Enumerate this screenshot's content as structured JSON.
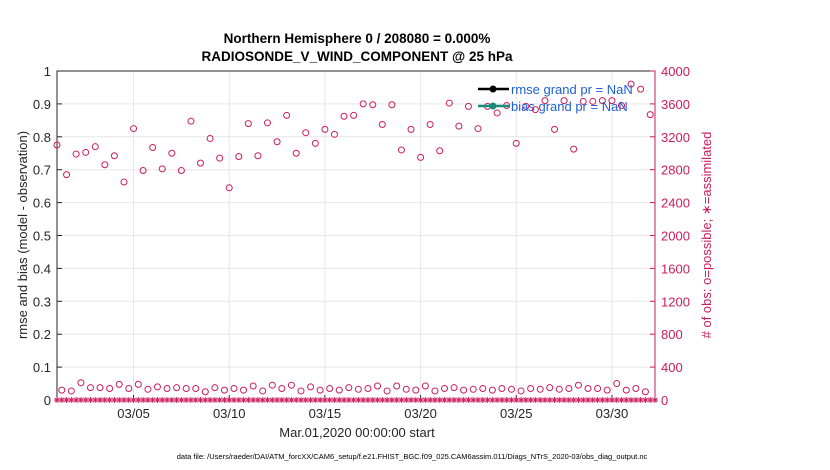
{
  "chart_data": {
    "type": "scatter",
    "title": "Northern Hemisphere 0 / 208080 = 0.000%",
    "subtitle": "RADIOSONDE_V_WIND_COMPONENT @ 25 hPa",
    "xlabel": "Mar.01,2020 00:00:00 start",
    "ylabel_left": "rmse and bias (model - observation)",
    "ylabel_right": "# of obs: o=possible; ∗=assimilated",
    "x_ticks": [
      "03/05",
      "03/10",
      "03/15",
      "03/20",
      "03/25",
      "03/30"
    ],
    "x_tick_days": [
      5,
      10,
      15,
      20,
      25,
      30
    ],
    "xlim_days": [
      1,
      32.25
    ],
    "ylim_left": [
      0,
      1
    ],
    "y_ticks_left": [
      "0",
      "0.1",
      "0.2",
      "0.3",
      "0.4",
      "0.5",
      "0.6",
      "0.7",
      "0.8",
      "0.9",
      "1"
    ],
    "ylim_right": [
      0,
      4000
    ],
    "y_ticks_right": [
      "0",
      "400",
      "800",
      "1200",
      "1600",
      "2000",
      "2400",
      "2800",
      "3200",
      "3600",
      "4000"
    ],
    "grid": true,
    "legend": [
      {
        "label": "rmse grand pr = NaN",
        "color": "#000000"
      },
      {
        "label": "bias grand pr = NaN",
        "color": "#1a8a7a"
      }
    ],
    "colors": {
      "obs": "#cc1c5c",
      "grid": "#e6e6e6",
      "legend_text": "#1f5fd6"
    },
    "series": [
      {
        "name": "possible obs (00Z)",
        "x_days": [
          1,
          1.5,
          2,
          2.5,
          3,
          3.5,
          4,
          4.5,
          5,
          5.5,
          6,
          6.5,
          7,
          7.5,
          8,
          8.5,
          9,
          9.5,
          10,
          10.5,
          11,
          11.5,
          12,
          12.5,
          13,
          13.5,
          14,
          14.5,
          15,
          15.5,
          16,
          16.5,
          17,
          17.5,
          18,
          18.5,
          19,
          19.5,
          20,
          20.5,
          21,
          21.5,
          22,
          22.5,
          23,
          23.5,
          24,
          24.5,
          25,
          25.5,
          26,
          26.5,
          27,
          27.5,
          28,
          28.5,
          29,
          29.5,
          30,
          30.5,
          31,
          31.5,
          32
        ],
        "values": [
          3100,
          2740,
          2990,
          3010,
          3080,
          2860,
          2970,
          2650,
          3300,
          2790,
          3070,
          2810,
          3000,
          2790,
          3390,
          2880,
          3180,
          2940,
          2580,
          2960,
          3360,
          2970,
          3370,
          3140,
          3460,
          3000,
          3250,
          3120,
          3290,
          3230,
          3450,
          3460,
          3600,
          3590,
          3350,
          3590,
          3040,
          3290,
          2950,
          3350,
          3030,
          3610,
          3330,
          3570,
          3300,
          3570,
          3490,
          3580,
          3120,
          3570,
          3530,
          3640,
          3290,
          3640,
          3050,
          3630,
          3630,
          3640,
          3640,
          3580,
          3840,
          3780,
          3470
        ]
      },
      {
        "name": "possible obs (12Z)",
        "x_days": [
          1.25,
          1.75,
          2.25,
          2.75,
          3.25,
          3.75,
          4.25,
          4.75,
          5.25,
          5.75,
          6.25,
          6.75,
          7.25,
          7.75,
          8.25,
          8.75,
          9.25,
          9.75,
          10.25,
          10.75,
          11.25,
          11.75,
          12.25,
          12.75,
          13.25,
          13.75,
          14.25,
          14.75,
          15.25,
          15.75,
          16.25,
          16.75,
          17.25,
          17.75,
          18.25,
          18.75,
          19.25,
          19.75,
          20.25,
          20.75,
          21.25,
          21.75,
          22.25,
          22.75,
          23.25,
          23.75,
          24.25,
          24.75,
          25.25,
          25.75,
          26.25,
          26.75,
          27.25,
          27.75,
          28.25,
          28.75,
          29.25,
          29.75,
          30.25,
          30.75,
          31.25,
          31.75
        ],
        "values": [
          120,
          110,
          210,
          150,
          150,
          140,
          190,
          140,
          190,
          130,
          160,
          140,
          150,
          140,
          140,
          100,
          150,
          120,
          140,
          120,
          170,
          110,
          180,
          140,
          180,
          110,
          160,
          120,
          140,
          120,
          150,
          130,
          140,
          170,
          110,
          170,
          130,
          120,
          170,
          110,
          140,
          150,
          120,
          130,
          140,
          120,
          140,
          130,
          110,
          140,
          130,
          150,
          130,
          140,
          180,
          140,
          140,
          120,
          200,
          120,
          140,
          100
        ]
      },
      {
        "name": "assimilated obs",
        "values_all": 0
      },
      {
        "name": "rmse",
        "values_all": "NaN"
      },
      {
        "name": "bias",
        "values_all": "NaN"
      }
    ],
    "footnote": "data file: /Users/raeder/DAI/ATM_forcXX/CAM6_setup/f.e21.FHIST_BGC.f09_025.CAM6assim.011/Diags_NTrS_2020-03/obs_diag_output.nc"
  }
}
